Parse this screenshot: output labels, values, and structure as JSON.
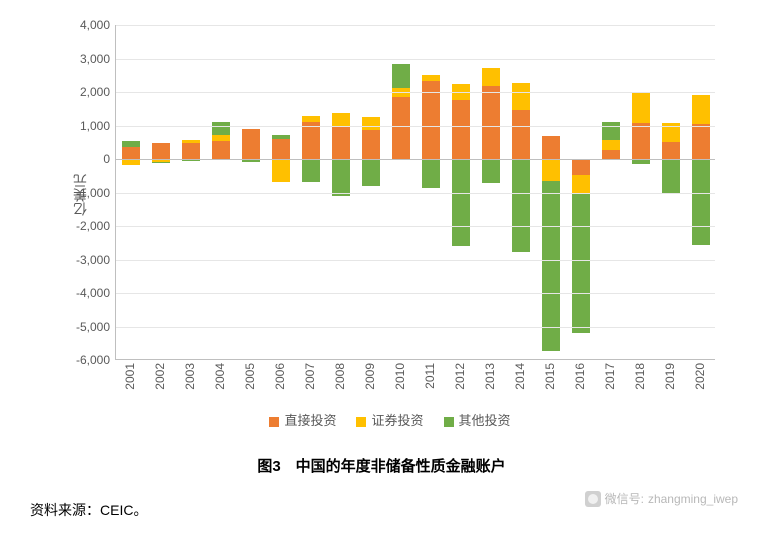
{
  "chart": {
    "type": "stacked-bar",
    "ylabel": "亿美元",
    "ylim": [
      -6000,
      4000
    ],
    "ytick_step": 1000,
    "background_color": "#ffffff",
    "grid_color": "#e6e6e6",
    "axis_color": "#bfbfbf",
    "tick_font_color": "#595959",
    "tick_fontsize": 12,
    "bar_width_ratio": 0.62,
    "series": [
      {
        "key": "direct",
        "label": "直接投资",
        "color": "#ed7d31"
      },
      {
        "key": "portfolio",
        "label": "证券投资",
        "color": "#ffc000"
      },
      {
        "key": "other",
        "label": "其他投资",
        "color": "#70ad47"
      }
    ],
    "categories": [
      "2001",
      "2002",
      "2003",
      "2004",
      "2005",
      "2006",
      "2007",
      "2008",
      "2009",
      "2010",
      "2011",
      "2012",
      "2013",
      "2014",
      "2015",
      "2016",
      "2017",
      "2018",
      "2019",
      "2020"
    ],
    "data": {
      "direct": [
        370,
        470,
        470,
        530,
        900,
        600,
        1100,
        950,
        870,
        1860,
        2320,
        1760,
        2180,
        1450,
        680,
        -470,
        280,
        1070,
        500,
        1030
      ],
      "portfolio": [
        -190,
        -90,
        110,
        200,
        -40,
        -680,
        190,
        430,
        390,
        250,
        200,
        480,
        530,
        820,
        -670,
        -550,
        290,
        920,
        580,
        870
      ],
      "other": [
        170,
        -40,
        -60,
        380,
        -40,
        130,
        -700,
        -1110,
        -800,
        720,
        -870,
        -2600,
        -720,
        -2780,
        -5060,
        -4170,
        520,
        -150,
        -1020,
        -2560
      ]
    }
  },
  "legend_labels": {
    "direct": "直接投资",
    "portfolio": "证券投资",
    "other": "其他投资"
  },
  "caption": "图3　中国的年度非储备性质金融账户",
  "source": "资料来源：CEIC。",
  "watermark": {
    "prefix": "微信号:",
    "id": "zhangming_iwep"
  }
}
